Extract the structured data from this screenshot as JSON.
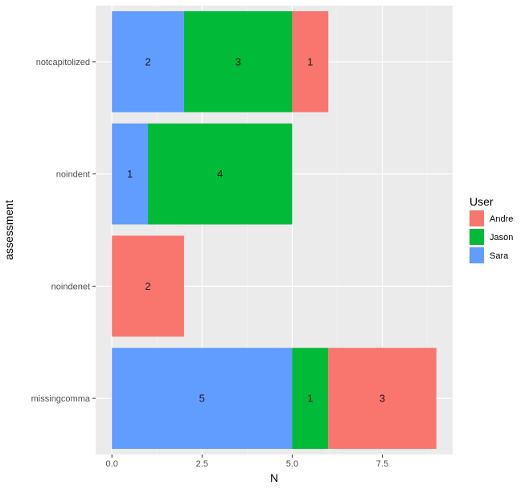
{
  "chart_data": {
    "type": "bar",
    "orientation": "horizontal",
    "stacked": true,
    "xlabel": "N",
    "ylabel": "assessment",
    "xlim": [
      -0.45,
      9.45
    ],
    "x_ticks": [
      0,
      2.5,
      5,
      7.5
    ],
    "x_tick_labels": [
      "0.0",
      "2.5",
      "5.0",
      "7.5"
    ],
    "categories": [
      "missingcomma",
      "noindenet",
      "noindent",
      "notcapitolized"
    ],
    "stack_order": [
      "Sara",
      "Jason",
      "Andre"
    ],
    "series": [
      {
        "name": "Andre",
        "color": "#F8766D",
        "values": [
          3,
          2,
          0,
          1
        ]
      },
      {
        "name": "Jason",
        "color": "#00BA38",
        "values": [
          1,
          0,
          4,
          3
        ]
      },
      {
        "name": "Sara",
        "color": "#619CFF",
        "values": [
          5,
          0,
          1,
          2
        ]
      }
    ],
    "legend": {
      "title": "User",
      "position": "right",
      "entries": [
        "Andre",
        "Jason",
        "Sara"
      ]
    },
    "grid": true,
    "panel_background": "#EBEBEB"
  }
}
